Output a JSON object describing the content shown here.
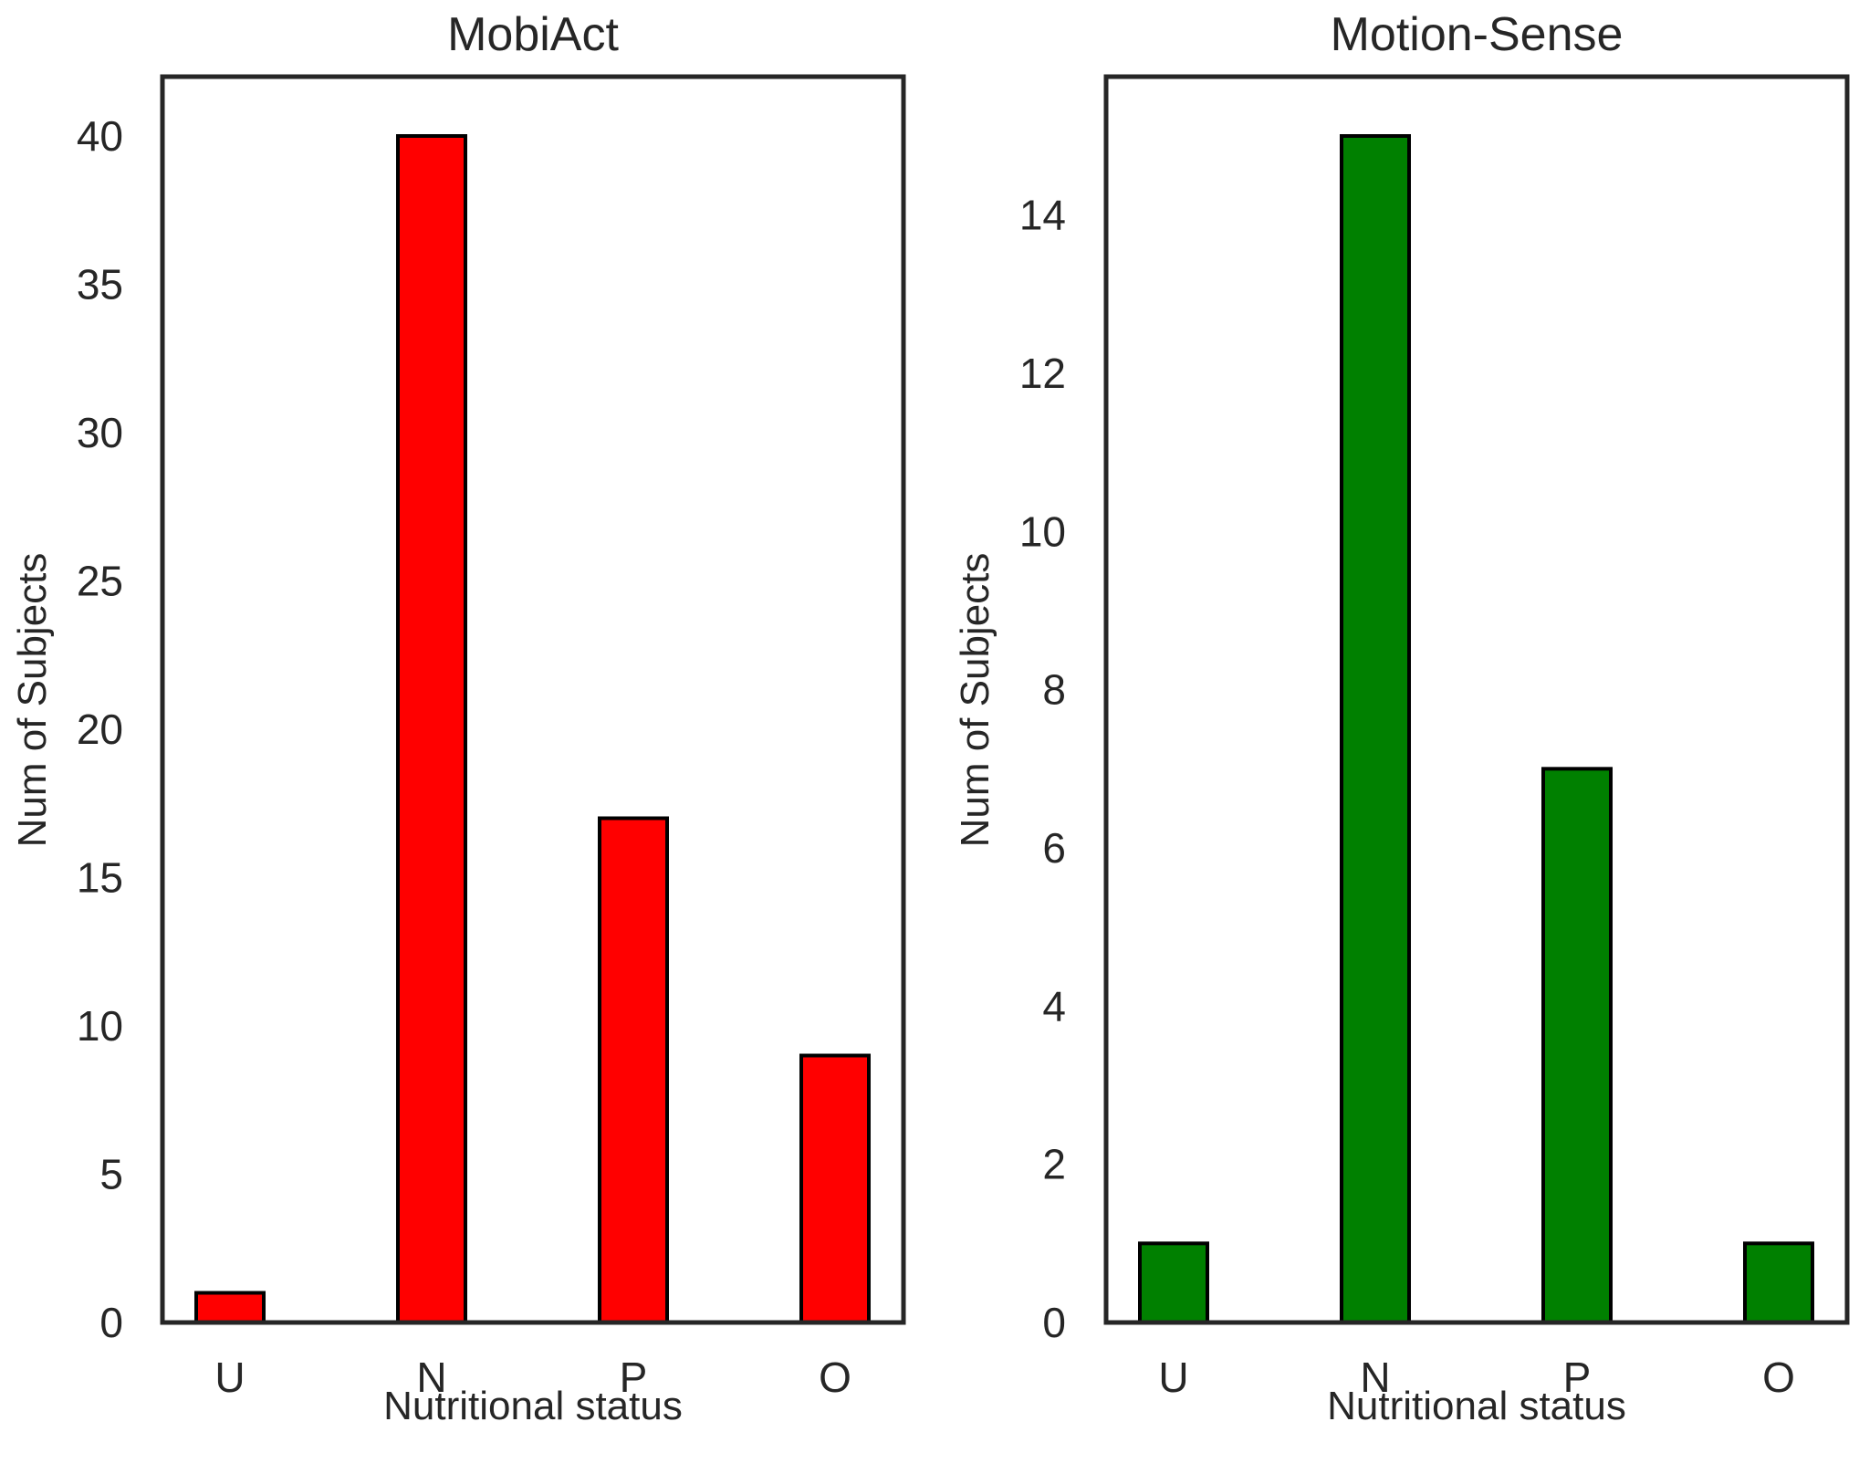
{
  "chart_data": [
    {
      "type": "bar",
      "title": "MobiAct",
      "xlabel": "Nutritional status",
      "ylabel": "Num of Subjects",
      "categories": [
        "U",
        "N",
        "P",
        "O"
      ],
      "values": [
        1,
        40,
        17,
        9
      ],
      "ylim": [
        0,
        42
      ],
      "yticks": [
        0,
        5,
        10,
        15,
        20,
        25,
        30,
        35,
        40
      ],
      "color": "#ff0000",
      "grid": false
    },
    {
      "type": "bar",
      "title": "Motion-Sense",
      "xlabel": "Nutritional status",
      "ylabel": "Num of Subjects",
      "categories": [
        "U",
        "N",
        "P",
        "O"
      ],
      "values": [
        1,
        15,
        7,
        1
      ],
      "ylim": [
        0,
        15.75
      ],
      "yticks": [
        0,
        2,
        4,
        6,
        8,
        10,
        12,
        14
      ],
      "color": "#008000",
      "grid": false
    }
  ]
}
